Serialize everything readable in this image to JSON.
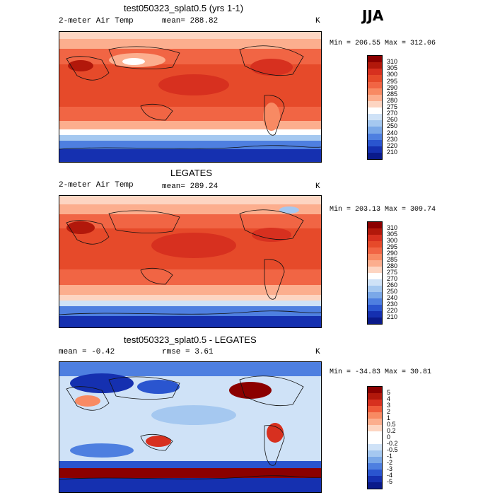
{
  "season": "JJA",
  "panels": [
    {
      "id": "model",
      "title": "test050323_splat0.5 (yrs 1-1)",
      "left_text": "2-meter Air Temp",
      "mid_text": "mean= 288.82",
      "rmse_text": "",
      "unit": "K",
      "minmax": "Min = 206.55 Max = 312.06"
    },
    {
      "id": "obs",
      "title": "LEGATES",
      "left_text": "2-meter Air Temp",
      "mid_text": "mean= 289.24",
      "rmse_text": "",
      "unit": "K",
      "minmax": "Min = 203.13 Max = 309.74"
    },
    {
      "id": "diff",
      "title": "test050323_splat0.5 - LEGATES",
      "left_text": "mean =  -0.42",
      "mid_text": "rmse =   3.61",
      "rmse_text": "",
      "unit": "K",
      "minmax": "Min = -34.83 Max =  30.81"
    }
  ],
  "colorbars": {
    "temperature": {
      "labels": [
        "310",
        "305",
        "300",
        "295",
        "290",
        "285",
        "280",
        "275",
        "270",
        "260",
        "250",
        "240",
        "230",
        "220",
        "210"
      ],
      "colors": [
        "#8b0000",
        "#b2180b",
        "#d7301f",
        "#e64a2a",
        "#f16544",
        "#f88a63",
        "#fcae8e",
        "#fdd5c2",
        "#ffffff",
        "#cfe2f7",
        "#a5c8f0",
        "#7aa8e8",
        "#4e7fe0",
        "#2a55cf",
        "#1530b0",
        "#0a1a8a"
      ]
    },
    "difference": {
      "labels": [
        "5",
        "4",
        "3",
        "2",
        "1",
        "0.5",
        "0.2",
        "0",
        "-0.2",
        "-0.5",
        "-1",
        "-2",
        "-3",
        "-4",
        "-5"
      ],
      "colors": [
        "#8b0000",
        "#b2180b",
        "#d7301f",
        "#ef5a3a",
        "#f88a63",
        "#fcae8e",
        "#fdd5c2",
        "#ffffff",
        "#ffffff",
        "#cfe2f7",
        "#a5c8f0",
        "#7aa8e8",
        "#4e7fe0",
        "#2a55cf",
        "#1530b0",
        "#0a1a8a"
      ]
    }
  }
}
